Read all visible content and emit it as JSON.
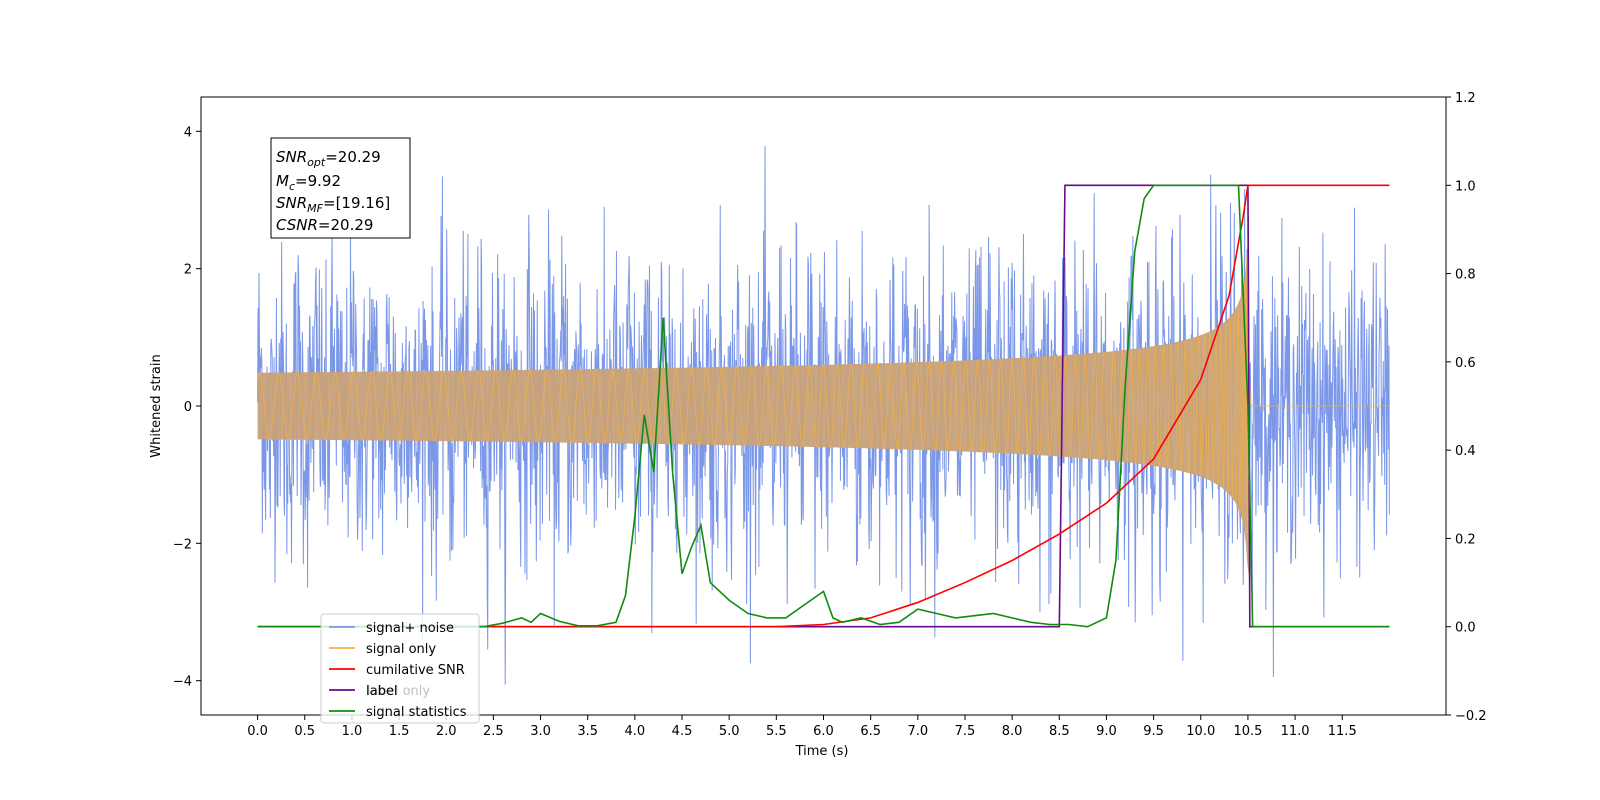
{
  "chart_data": {
    "type": "line",
    "xlabel": "Time (s)",
    "ylabel": "Whitened strain",
    "xlim": [
      -0.6,
      12.6
    ],
    "ylim_left": [
      -4.5,
      4.5
    ],
    "ylim_right": [
      -0.2,
      1.2
    ],
    "x_ticks": [
      "0.0",
      "0.5",
      "1.0",
      "1.5",
      "2.0",
      "2.5",
      "3.0",
      "3.5",
      "4.0",
      "4.5",
      "5.0",
      "5.5",
      "6.0",
      "6.5",
      "7.0",
      "7.5",
      "8.0",
      "8.5",
      "9.0",
      "9.5",
      "10.0",
      "10.5",
      "11.0",
      "11.5"
    ],
    "y_ticks_left": [
      "4",
      "2",
      "0",
      "−2",
      "−4"
    ],
    "y_ticks_right": [
      "1.2",
      "1.0",
      "0.8",
      "0.6",
      "0.4",
      "0.2",
      "0.0",
      "−0.2"
    ],
    "annotation": {
      "snr_opt": "=20.29",
      "mc": "=9.92",
      "snr_mf": "=[19.16]",
      "csnr": "=20.29"
    },
    "legend": {
      "location": "lower-left",
      "entries": [
        "signal+ noise",
        "signal only",
        "cumilative SNR",
        "label",
        "label only",
        "signal statistics"
      ]
    },
    "colors": {
      "signal_noise": "#7b97e8",
      "signal_only": "#f5b041",
      "signal_fill": "#c8a27a",
      "cumulative_snr": "#ff0000",
      "label": "#6a0a8a",
      "signal_statistics": "#118c11"
    },
    "series": [
      {
        "name": "signal+ noise",
        "axis": "left",
        "description_range": [
          -4.1,
          4.1
        ],
        "x_range": [
          0.0,
          12.0
        ]
      },
      {
        "name": "signal only",
        "axis": "left",
        "chirp_peak_time": 10.5,
        "peak_amplitude": 2.5
      },
      {
        "name": "cumilative SNR",
        "axis": "right",
        "x": [
          0.0,
          5.5,
          6.0,
          6.5,
          7.0,
          7.5,
          8.0,
          8.5,
          9.0,
          9.5,
          10.0,
          10.3,
          10.45,
          10.5,
          11.5,
          12.0
        ],
        "y": [
          0.0,
          0.0,
          0.005,
          0.02,
          0.055,
          0.1,
          0.15,
          0.21,
          0.28,
          0.38,
          0.56,
          0.75,
          0.93,
          1.0,
          1.0,
          1.0
        ]
      },
      {
        "name": "label",
        "axis": "right",
        "x": [
          0.0,
          8.5,
          8.56,
          10.5,
          10.52,
          12.0
        ],
        "y": [
          0.0,
          0.0,
          1.0,
          1.0,
          0.0,
          0.0
        ]
      },
      {
        "name": "signal statistics",
        "axis": "right",
        "x": [
          0.0,
          2.4,
          2.6,
          2.8,
          2.9,
          3.0,
          3.2,
          3.4,
          3.6,
          3.8,
          3.9,
          4.0,
          4.1,
          4.2,
          4.3,
          4.4,
          4.5,
          4.6,
          4.7,
          4.8,
          4.9,
          5.0,
          5.2,
          5.4,
          5.6,
          5.8,
          6.0,
          6.1,
          6.2,
          6.4,
          6.6,
          6.8,
          7.0,
          7.2,
          7.4,
          7.6,
          7.8,
          8.0,
          8.2,
          8.4,
          8.6,
          8.8,
          9.0,
          9.1,
          9.2,
          9.3,
          9.4,
          9.5,
          9.6,
          10.0,
          10.4,
          10.5,
          10.55,
          12.0
        ],
        "y": [
          0.0,
          0.0,
          0.008,
          0.02,
          0.01,
          0.03,
          0.012,
          0.002,
          0.002,
          0.01,
          0.07,
          0.25,
          0.48,
          0.35,
          0.7,
          0.35,
          0.12,
          0.18,
          0.23,
          0.1,
          0.08,
          0.06,
          0.03,
          0.02,
          0.02,
          0.05,
          0.08,
          0.02,
          0.01,
          0.02,
          0.005,
          0.01,
          0.04,
          0.03,
          0.02,
          0.025,
          0.03,
          0.02,
          0.01,
          0.005,
          0.005,
          0.0,
          0.02,
          0.15,
          0.55,
          0.85,
          0.97,
          1.0,
          1.0,
          1.0,
          1.0,
          0.5,
          0.0,
          0.0
        ]
      }
    ]
  }
}
